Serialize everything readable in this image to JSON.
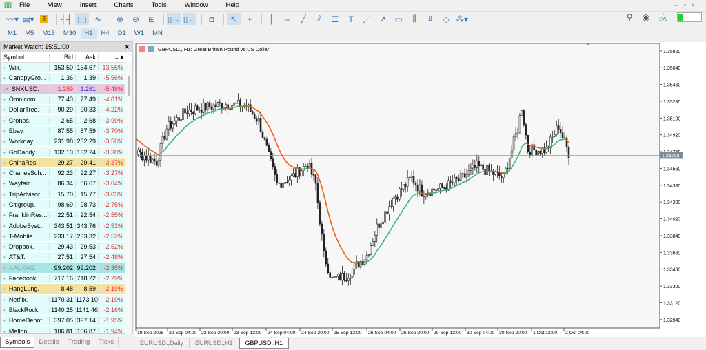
{
  "menu": [
    "File",
    "View",
    "Insert",
    "Charts",
    "Tools",
    "Window",
    "Help"
  ],
  "timeframes": [
    "M1",
    "M5",
    "M15",
    "M30",
    "H1",
    "H4",
    "D1",
    "W1",
    "MN"
  ],
  "active_timeframe": "H1",
  "toolbar_icons": [
    "line-chart-icon",
    "chart-template-icon",
    "dollar-icon",
    "bar-chart-icon",
    "candlestick-icon",
    "line-icon",
    "zoom-in-icon",
    "zoom-out-icon",
    "tile-windows-icon",
    "auto-scroll-icon",
    "chart-shift-icon",
    "screenshot-icon",
    "cursor-icon",
    "crosshair-icon",
    "vertical-line-icon",
    "horizontal-line-icon",
    "trendline-icon",
    "equidistant-channel-icon",
    "fibonacci-icon",
    "text-icon",
    "fibo-fan-icon",
    "arrow-icon",
    "rectangle-icon",
    "andrews-pitchfork-icon",
    "gann-icon",
    "ellipse-icon",
    "shapes-icon"
  ],
  "signal_level": 0.4,
  "signal_label": "LVL",
  "market_watch": {
    "title": "Market Watch: 15:51:00",
    "columns": [
      "Symbol",
      "Bid",
      "Ask",
      "..."
    ],
    "rows": [
      {
        "symbol": "Wix.",
        "bid": "153.50",
        "ask": "154.67",
        "change": "-13.55%"
      },
      {
        "symbol": "CanopyGro...",
        "bid": "1.36",
        "ask": "1.39",
        "change": "-5.56%"
      },
      {
        "symbol": "SNXUSD.",
        "bid": "1.259",
        "ask": "1.261",
        "change": "-5.48%",
        "highlight": "#e6c8de",
        "bid_color": "#e0303a",
        "ask_color": "#2a2ae0",
        "icon": "trend-up-icon"
      },
      {
        "symbol": "Omnicom.",
        "bid": "77.43",
        "ask": "77.49",
        "change": "-4.81%"
      },
      {
        "symbol": "DollarTree.",
        "bid": "90.29",
        "ask": "90.33",
        "change": "-4.22%"
      },
      {
        "symbol": "Cronos.",
        "bid": "2.65",
        "ask": "2.68",
        "change": "-3.99%"
      },
      {
        "symbol": "Ebay.",
        "bid": "87.55",
        "ask": "87.59",
        "change": "-3.70%"
      },
      {
        "symbol": "Workday.",
        "bid": "231.98",
        "ask": "232.29",
        "change": "-3.56%"
      },
      {
        "symbol": "GoDaddy.",
        "bid": "132.13",
        "ask": "132.24",
        "change": "-3.38%"
      },
      {
        "symbol": "ChinaRes.",
        "bid": "29.27",
        "ask": "29.41",
        "change": "-3.37%",
        "highlight": "#f4e3a0"
      },
      {
        "symbol": "CharlesSch...",
        "bid": "92.23",
        "ask": "92.27",
        "change": "-3.27%"
      },
      {
        "symbol": "Wayfair.",
        "bid": "86.34",
        "ask": "86.67",
        "change": "-3.04%"
      },
      {
        "symbol": "TripAdvisor.",
        "bid": "15.70",
        "ask": "15.77",
        "change": "-3.03%"
      },
      {
        "symbol": "Citigroup.",
        "bid": "98.69",
        "ask": "98.73",
        "change": "-2.75%"
      },
      {
        "symbol": "FranklinRes...",
        "bid": "22.51",
        "ask": "22.54",
        "change": "-2.55%"
      },
      {
        "symbol": "AdobeSyst...",
        "bid": "343.51",
        "ask": "343.76",
        "change": "-2.53%"
      },
      {
        "symbol": "T-Mobile.",
        "bid": "233.17",
        "ask": "233.32",
        "change": "-2.52%"
      },
      {
        "symbol": "Dropbox.",
        "bid": "29.43",
        "ask": "29.53",
        "change": "-2.52%"
      },
      {
        "symbol": "AT&T.",
        "bid": "27.51",
        "ask": "27.54",
        "change": "-2.48%"
      },
      {
        "symbol": "XAUXAG.",
        "bid": "99.202",
        "ask": "99.202",
        "change": "-2.35%",
        "highlight": "#a9e4e4",
        "symbol_color": "#8aa"
      },
      {
        "symbol": "Facebook.",
        "bid": "717.16",
        "ask": "718.22",
        "change": "-2.29%"
      },
      {
        "symbol": "HangLung.",
        "bid": "8.48",
        "ask": "8.59",
        "change": "-2.19%",
        "highlight": "#f4e3a0"
      },
      {
        "symbol": "Netflix.",
        "bid": "1170.31",
        "ask": "1173.10",
        "change": "-2.19%"
      },
      {
        "symbol": "BlackRock.",
        "bid": "1140.25",
        "ask": "1141.46",
        "change": "-2.16%"
      },
      {
        "symbol": "HomeDepot.",
        "bid": "397.05",
        "ask": "397.14",
        "change": "-1.95%"
      },
      {
        "symbol": "Mellon.",
        "bid": "106.81",
        "ask": "106.87",
        "change": "-1.94%"
      }
    ],
    "tabs": [
      "Symbols",
      "Details",
      "Trading",
      "Ticks"
    ],
    "active_tab": "Symbols"
  },
  "chart_tabs": [
    "EURUSD.,Daily",
    "EURUSD.,H1",
    "GBPUSD.,H1"
  ],
  "active_chart_tab": "GBPUSD.,H1",
  "chart_data": {
    "type": "candlestick",
    "title": "GBPUSD., H1:  Great Britain Pound vs US Dollar",
    "y_ticks": [
      "1.35820",
      "1.35640",
      "1.35460",
      "1.35280",
      "1.35100",
      "1.34920",
      "1.34740",
      "1.34560",
      "1.34380",
      "1.34200",
      "1.34020",
      "1.33840",
      "1.33660",
      "1.33480",
      "1.33300",
      "1.33120",
      "1.32940"
    ],
    "ylim": [
      1.3285,
      1.359
    ],
    "current_price": "1.34700",
    "x_ticks": [
      "19 Sep 2025",
      "22 Sep 04:00",
      "22 Sep 20:00",
      "23 Sep 12:00",
      "24 Sep 04:00",
      "24 Sep 20:00",
      "25 Sep 12:00",
      "26 Sep 04:00",
      "26 Sep 20:00",
      "29 Sep 12:00",
      "30 Sep 04:00",
      "30 Sep 20:00",
      "1 Oct 12:00",
      "2 Oct 04:00"
    ],
    "bull_color": "#2ea043",
    "bear_color": "#6b1a1a",
    "ma_up_color": "#3cb371",
    "ma_down_color": "#f05a14",
    "approx_close_path": [
      [
        "19 Sep 12:00",
        1.351
      ],
      [
        "19 Sep 16:00",
        1.348
      ],
      [
        "22 Sep 08:00",
        1.3463
      ],
      [
        "22 Sep 13:00",
        1.3499
      ],
      [
        "22 Sep 23:00",
        1.3518
      ],
      [
        "23 Sep 09:00",
        1.3522
      ],
      [
        "23 Sep 18:00",
        1.3525
      ],
      [
        "24 Sep 04:00",
        1.3523
      ],
      [
        "24 Sep 10:00",
        1.3507
      ],
      [
        "24 Sep 16:00",
        1.3461
      ],
      [
        "24 Sep 19:00",
        1.3439
      ],
      [
        "25 Sep 02:00",
        1.3446
      ],
      [
        "25 Sep 10:00",
        1.3461
      ],
      [
        "25 Sep 14:00",
        1.3439
      ],
      [
        "25 Sep 18:00",
        1.3363
      ],
      [
        "25 Sep 22:00",
        1.3337
      ],
      [
        "26 Sep 05:00",
        1.3341
      ],
      [
        "26 Sep 15:00",
        1.3363
      ],
      [
        "26 Sep 20:00",
        1.3393
      ],
      [
        "29 Sep 04:00",
        1.3424
      ],
      [
        "29 Sep 13:00",
        1.3446
      ],
      [
        "29 Sep 18:00",
        1.3431
      ],
      [
        "30 Sep 04:00",
        1.3435
      ],
      [
        "30 Sep 14:00",
        1.3446
      ],
      [
        "30 Sep 21:00",
        1.3458
      ],
      [
        "1 Oct 10:00",
        1.3446
      ],
      [
        "1 Oct 17:00",
        1.3499
      ],
      [
        "1 Oct 19:00",
        1.3522
      ],
      [
        "1 Oct 22:00",
        1.3476
      ],
      [
        "2 Oct 07:00",
        1.3476
      ],
      [
        "2 Oct 13:00",
        1.3502
      ],
      [
        "2 Oct 18:00",
        1.3472
      ]
    ]
  }
}
